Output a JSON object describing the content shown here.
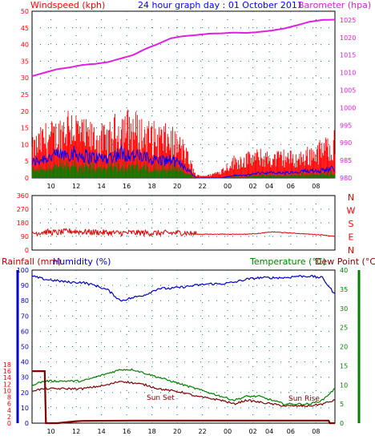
{
  "title": "24 hour graph day : 01 October 2011",
  "labels": {
    "windspeed": "Windspeed (kph)",
    "barometer": "Barometer (hpa)",
    "rainfall": "Rainfall (mm)",
    "humidity": "Humidity (%)",
    "temperature": "Temperature (°C)",
    "dewpoint": "Dew Point (°C)",
    "sunset": "Sun Set",
    "sunrise": "Sun Rise"
  },
  "colors": {
    "wind_gust": "#ff0000",
    "wind_avg": "#0000ff",
    "wind_low": "#008000",
    "barometer": "#e020e0",
    "direction": "#e00000",
    "humidity": "#0000c0",
    "temperature": "#008000",
    "dewpoint": "#800000",
    "rainfall": "#800000",
    "grid": "#007a7a",
    "left_axis": "#ff0000",
    "right_axis_baro": "#e020e0",
    "humidity_axis": "#0000c0",
    "temp_axis": "#008000"
  },
  "chart_data": [
    {
      "type": "line",
      "name": "wind-barometer",
      "x_ticks": [
        "10",
        "12",
        "14",
        "16",
        "18",
        "20",
        "22",
        "00",
        "02",
        "04",
        "06",
        "08"
      ],
      "left_axis": {
        "label": "Windspeed (kph)",
        "ylim": [
          0,
          50
        ],
        "ticks": [
          0,
          5,
          10,
          15,
          20,
          25,
          30,
          35,
          40,
          45,
          50
        ]
      },
      "right_axis": {
        "label": "Barometer (hpa)",
        "ylim": [
          980,
          1027.5
        ],
        "ticks": [
          980,
          985,
          990,
          995,
          1000,
          1005,
          1010,
          1015,
          1020,
          1025
        ]
      },
      "grid": true,
      "barometer": {
        "hours": [
          0,
          1,
          2,
          3,
          4,
          5,
          6,
          7,
          8,
          9,
          10,
          11,
          12,
          13,
          14,
          15,
          16,
          17,
          18,
          19,
          20,
          21,
          22,
          23,
          24
        ],
        "values": [
          1009.0,
          1010.0,
          1011.0,
          1011.5,
          1012.2,
          1012.5,
          1013.0,
          1014.0,
          1015.0,
          1016.8,
          1018.2,
          1019.8,
          1020.4,
          1020.7,
          1021.1,
          1021.2,
          1021.4,
          1021.3,
          1021.6,
          1022.0,
          1022.6,
          1023.5,
          1024.5,
          1025.0,
          1025.1
        ]
      },
      "wind_gust_envelope": {
        "hours": [
          0,
          1,
          2,
          3,
          4,
          5,
          6,
          7,
          8,
          9,
          10,
          11,
          12,
          13,
          14,
          15,
          16,
          17,
          18,
          19,
          20,
          21,
          22,
          23,
          24
        ],
        "values": [
          12,
          17,
          18,
          24,
          18,
          17,
          16,
          22,
          21,
          18,
          17,
          16,
          12,
          1,
          1,
          3,
          7,
          8,
          9,
          8,
          9,
          8,
          10,
          12,
          15
        ]
      },
      "wind_avg_envelope": {
        "hours": [
          0,
          1,
          2,
          3,
          4,
          5,
          6,
          7,
          8,
          9,
          10,
          11,
          12,
          13,
          14,
          15,
          16,
          17,
          18,
          19,
          20,
          21,
          22,
          23,
          24
        ],
        "values": [
          6,
          8,
          9,
          10,
          9,
          8,
          8,
          10,
          9,
          8,
          7,
          7,
          5,
          0,
          0,
          0,
          1,
          1,
          2,
          2,
          2,
          2,
          3,
          3,
          4
        ]
      }
    },
    {
      "type": "line",
      "name": "wind-direction",
      "y_ticks": [
        0,
        90,
        180,
        270,
        360
      ],
      "ylim": [
        0,
        360
      ],
      "compass": [
        "N",
        "W",
        "S",
        "E",
        "N"
      ],
      "hours": [
        0,
        1,
        2,
        3,
        4,
        5,
        6,
        7,
        8,
        9,
        10,
        11,
        12,
        13,
        14,
        15,
        16,
        17,
        18,
        19,
        20,
        21,
        22,
        23,
        24
      ],
      "values": [
        110,
        120,
        115,
        125,
        120,
        118,
        115,
        112,
        115,
        113,
        112,
        112,
        115,
        105,
        105,
        105,
        105,
        105,
        110,
        120,
        115,
        110,
        105,
        100,
        90
      ]
    },
    {
      "type": "line",
      "name": "humidity-temp-rain",
      "x_ticks": [
        "10",
        "12",
        "14",
        "16",
        "18",
        "20",
        "22",
        "00",
        "02",
        "04",
        "06",
        "08"
      ],
      "humidity_axis": {
        "label": "Humidity (%)",
        "ylim": [
          0,
          100
        ],
        "ticks": [
          0,
          10,
          20,
          30,
          40,
          50,
          60,
          70,
          80,
          90,
          100
        ]
      },
      "rain_axis": {
        "label": "Rainfall (mm)",
        "ylim": [
          0,
          18
        ],
        "ticks": [
          0,
          2,
          4,
          6,
          8,
          10,
          12,
          14,
          16,
          18
        ]
      },
      "temp_axis": {
        "label": "Temperature (°C)",
        "ylim": [
          0,
          40
        ],
        "ticks": [
          0,
          5,
          10,
          15,
          20,
          25,
          30,
          35,
          40
        ]
      },
      "grid": true,
      "humidity": {
        "hours": [
          0,
          1,
          2,
          3,
          4,
          5,
          6,
          7,
          8,
          9,
          10,
          11,
          12,
          13,
          14,
          15,
          16,
          17,
          18,
          19,
          20,
          21,
          22,
          23,
          24
        ],
        "values": [
          96,
          94,
          93,
          92,
          92,
          90,
          87,
          80,
          82,
          84,
          88,
          88,
          89,
          90,
          91,
          91,
          92,
          94,
          95,
          95,
          95,
          96,
          96,
          95,
          84
        ]
      },
      "temperature": {
        "hours": [
          0,
          1,
          2,
          3,
          4,
          5,
          6,
          7,
          8,
          9,
          10,
          11,
          12,
          13,
          14,
          15,
          16,
          17,
          18,
          19,
          20,
          21,
          22,
          23,
          24
        ],
        "values": [
          10,
          11,
          11,
          11,
          11,
          12,
          13,
          14,
          14,
          13,
          12,
          11,
          10,
          9,
          8,
          7,
          6,
          7,
          7,
          6,
          5,
          5,
          5,
          6,
          9
        ]
      },
      "dewpoint": {
        "hours": [
          0,
          1,
          2,
          3,
          4,
          5,
          6,
          7,
          8,
          9,
          10,
          11,
          12,
          13,
          14,
          15,
          16,
          17,
          18,
          19,
          20,
          21,
          22,
          23,
          24
        ],
        "values": [
          8.5,
          9,
          9,
          9,
          9,
          9.5,
          10,
          11,
          10.5,
          10,
          9,
          8.5,
          8,
          7,
          6.5,
          6,
          5,
          6,
          5.5,
          5,
          4.5,
          4.5,
          4.5,
          5,
          6
        ]
      },
      "rainfall": {
        "hours": [
          0,
          1,
          1.1,
          2,
          3.5,
          4,
          8,
          12,
          16,
          20,
          23.5,
          23.6,
          24
        ],
        "values": [
          16,
          16,
          0,
          0,
          0.6,
          0.7,
          0.8,
          0.8,
          0.8,
          0.8,
          0.8,
          0,
          0
        ]
      }
    }
  ]
}
